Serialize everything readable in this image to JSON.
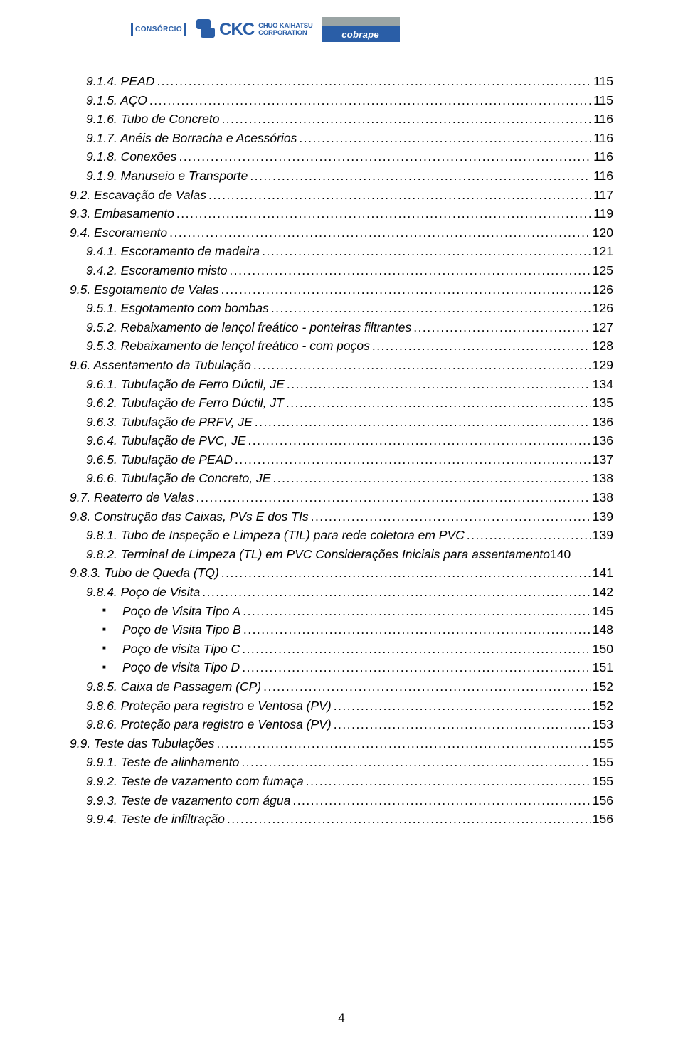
{
  "colors": {
    "brand_blue": "#2a5ea7",
    "gray_bar": "#9aa4a4",
    "text": "#000000",
    "bg": "#ffffff"
  },
  "typography": {
    "body_font": "Arial",
    "body_size_pt": 13,
    "toc_italic": true
  },
  "header": {
    "consorcio": "CONSÓRCIO",
    "ckc": "CKC",
    "ckc_sub_line1": "CHUO KAIHATSU",
    "ckc_sub_line2": "CORPORATION",
    "cobrape": "cobrape"
  },
  "toc": [
    {
      "level": 1,
      "label": "9.1.4. PEAD",
      "page": "115"
    },
    {
      "level": 1,
      "label": "9.1.5. AÇO",
      "page": "115"
    },
    {
      "level": 1,
      "label": "9.1.6. Tubo de Concreto",
      "page": "116"
    },
    {
      "level": 1,
      "label": "9.1.7. Anéis de Borracha e Acessórios",
      "page": "116"
    },
    {
      "level": 1,
      "label": "9.1.8. Conexões",
      "page": "116"
    },
    {
      "level": 1,
      "label": "9.1.9.    Manuseio e Transporte",
      "page": "116"
    },
    {
      "level": 0,
      "label": "9.2. Escavação de Valas",
      "page": "117"
    },
    {
      "level": 0,
      "label": "9.3. Embasamento",
      "page": "119"
    },
    {
      "level": 0,
      "label": "9.4. Escoramento",
      "page": "120"
    },
    {
      "level": 1,
      "label": "9.4.1. Escoramento de madeira",
      "page": "121"
    },
    {
      "level": 1,
      "label": "9.4.2. Escoramento misto",
      "page": "125"
    },
    {
      "level": 0,
      "label": "9.5. Esgotamento de Valas",
      "page": "126"
    },
    {
      "level": 1,
      "label": "9.5.1. Esgotamento com bombas",
      "page": "126"
    },
    {
      "level": 1,
      "label": "9.5.2. Rebaixamento de lençol freático - ponteiras filtrantes",
      "page": "127"
    },
    {
      "level": 1,
      "label": "9.5.3. Rebaixamento de lençol freático - com poços",
      "page": "128"
    },
    {
      "level": 0,
      "label": "9.6. Assentamento da Tubulação",
      "page": "129"
    },
    {
      "level": 1,
      "label": "9.6.1. Tubulação de Ferro Dúctil, JE",
      "page": "134"
    },
    {
      "level": 1,
      "label": "9.6.2. Tubulação de Ferro Dúctil, JT",
      "page": "135"
    },
    {
      "level": 1,
      "label": "9.6.3. Tubulação de PRFV, JE",
      "page": "136"
    },
    {
      "level": 1,
      "label": "9.6.4. Tubulação de PVC, JE",
      "page": "136"
    },
    {
      "level": 1,
      "label": "9.6.5. Tubulação de PEAD",
      "page": "137"
    },
    {
      "level": 1,
      "label": "9.6.6. Tubulação de Concreto, JE",
      "page": "138"
    },
    {
      "level": 0,
      "label": "9.7. Reaterro de Valas",
      "page": "138"
    },
    {
      "level": 0,
      "label": "9.8. Construção das Caixas, PVs E dos TIs",
      "page": "139"
    },
    {
      "level": 1,
      "label": "9.8.1. Tubo de Inspeção e Limpeza (TIL) para rede coletora em PVC",
      "page": "139"
    },
    {
      "level": 1,
      "label": "9.8.2. Terminal de Limpeza (TL) em PVC Considerações Iniciais para assentamento",
      "page": "140",
      "nodots": true
    },
    {
      "level": 0,
      "label": "9.8.3. Tubo de Queda (TQ)",
      "page": "141"
    },
    {
      "level": 1,
      "label": "9.8.4. Poço de Visita",
      "page": "142"
    },
    {
      "level": 3,
      "label": "Poço de Visita Tipo A",
      "page": "145"
    },
    {
      "level": 3,
      "label": "Poço de Visita Tipo B",
      "page": "148"
    },
    {
      "level": 3,
      "label": "Poço de visita Tipo C",
      "page": "150"
    },
    {
      "level": 3,
      "label": "Poço de visita Tipo D",
      "page": "151"
    },
    {
      "level": 1,
      "label": "9.8.5. Caixa de Passagem (CP)",
      "page": "152"
    },
    {
      "level": 1,
      "label": "9.8.6. Proteção para registro e Ventosa (PV)",
      "page": "152"
    },
    {
      "level": 1,
      "label": "9.8.6. Proteção para registro e Ventosa (PV)",
      "page": "153"
    },
    {
      "level": 0,
      "label": "9.9. Teste das Tubulações",
      "page": "155"
    },
    {
      "level": 1,
      "label": "9.9.1. Teste de alinhamento",
      "page": "155"
    },
    {
      "level": 1,
      "label": "9.9.2. Teste de vazamento com fumaça",
      "page": "155"
    },
    {
      "level": 1,
      "label": "9.9.3. Teste de vazamento com água",
      "page": "156"
    },
    {
      "level": 1,
      "label": "9.9.4. Teste de infiltração",
      "page": "156"
    }
  ],
  "page_number": "4"
}
